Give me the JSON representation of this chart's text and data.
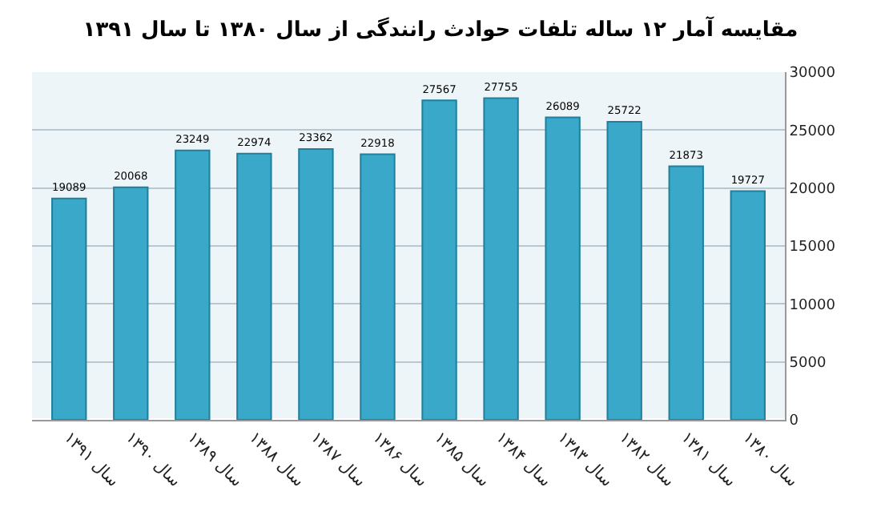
{
  "chart_data": {
    "type": "bar",
    "title": "مقایسه آمار ۱۲ ساله تلفات حوادث رانندگی از سال ۱۳۸۰ تا سال ۱۳۹۱",
    "categories": [
      "سال ۱۳۹۱",
      "سال ۱۳۹۰",
      "سال ۱۳۸۹",
      "سال ۱۳۸۸",
      "سال ۱۳۸۷",
      "سال ۱۳۸۶",
      "سال ۱۳۸۵",
      "سال ۱۳۸۴",
      "سال ۱۳۸۳",
      "سال ۱۳۸۲",
      "سال ۱۳۸۱",
      "سال ۱۳۸۰"
    ],
    "values": [
      19089,
      20068,
      23249,
      22974,
      23362,
      22918,
      27567,
      27755,
      26089,
      25722,
      21873,
      19727
    ],
    "color": "#3aa8c8",
    "ylim": [
      0,
      30000
    ],
    "yticks": [
      0,
      5000,
      10000,
      15000,
      20000,
      25000,
      30000
    ],
    "grid": "y",
    "data_labels": true
  }
}
